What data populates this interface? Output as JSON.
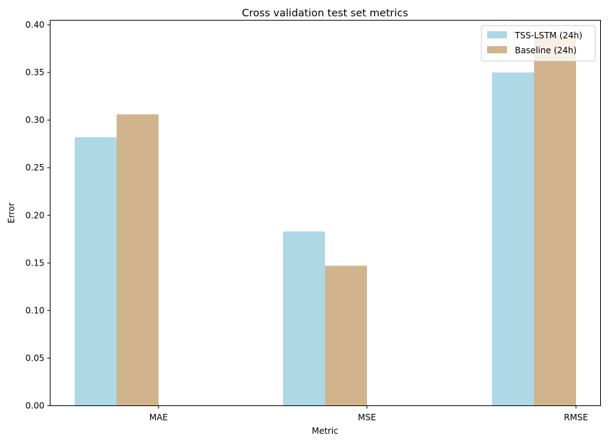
{
  "chart_data": {
    "type": "bar",
    "title": "Cross validation test set metrics",
    "xlabel": "Metric",
    "ylabel": "Error",
    "categories": [
      "MAE",
      "MSE",
      "RMSE"
    ],
    "series": [
      {
        "name": "TSS-LSTM (24h)",
        "values": [
          0.282,
          0.183,
          0.35
        ],
        "color": "#add8e6"
      },
      {
        "name": "Baseline (24h)",
        "values": [
          0.306,
          0.147,
          0.389
        ],
        "color": "#d2b48c"
      }
    ],
    "ylim": [
      0,
      0.4
    ],
    "yticks": [
      "0.00",
      "0.05",
      "0.10",
      "0.15",
      "0.20",
      "0.25",
      "0.30",
      "0.35",
      "0.40"
    ],
    "legend_position": "top-right",
    "grid": false
  }
}
